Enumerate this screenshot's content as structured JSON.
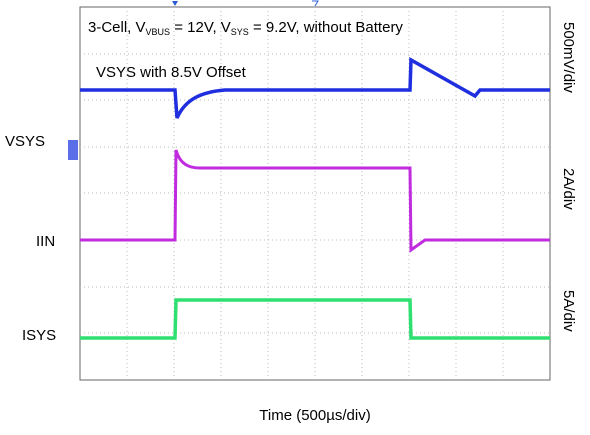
{
  "title": {
    "prefix": "3-Cell, V",
    "sub1": "VBUS",
    "mid": " = 12V, V",
    "sub2": "SYS",
    "suffix": " = 9.2V, without Battery"
  },
  "annotation": "VSYS with 8.5V Offset",
  "channels": [
    {
      "label": "VSYS",
      "scale": "500mV/div"
    },
    {
      "label": "IIN",
      "scale": "2A/div"
    },
    {
      "label": "ISYS",
      "scale": "5A/div"
    }
  ],
  "x_label": "Time (500µs/div)"
}
